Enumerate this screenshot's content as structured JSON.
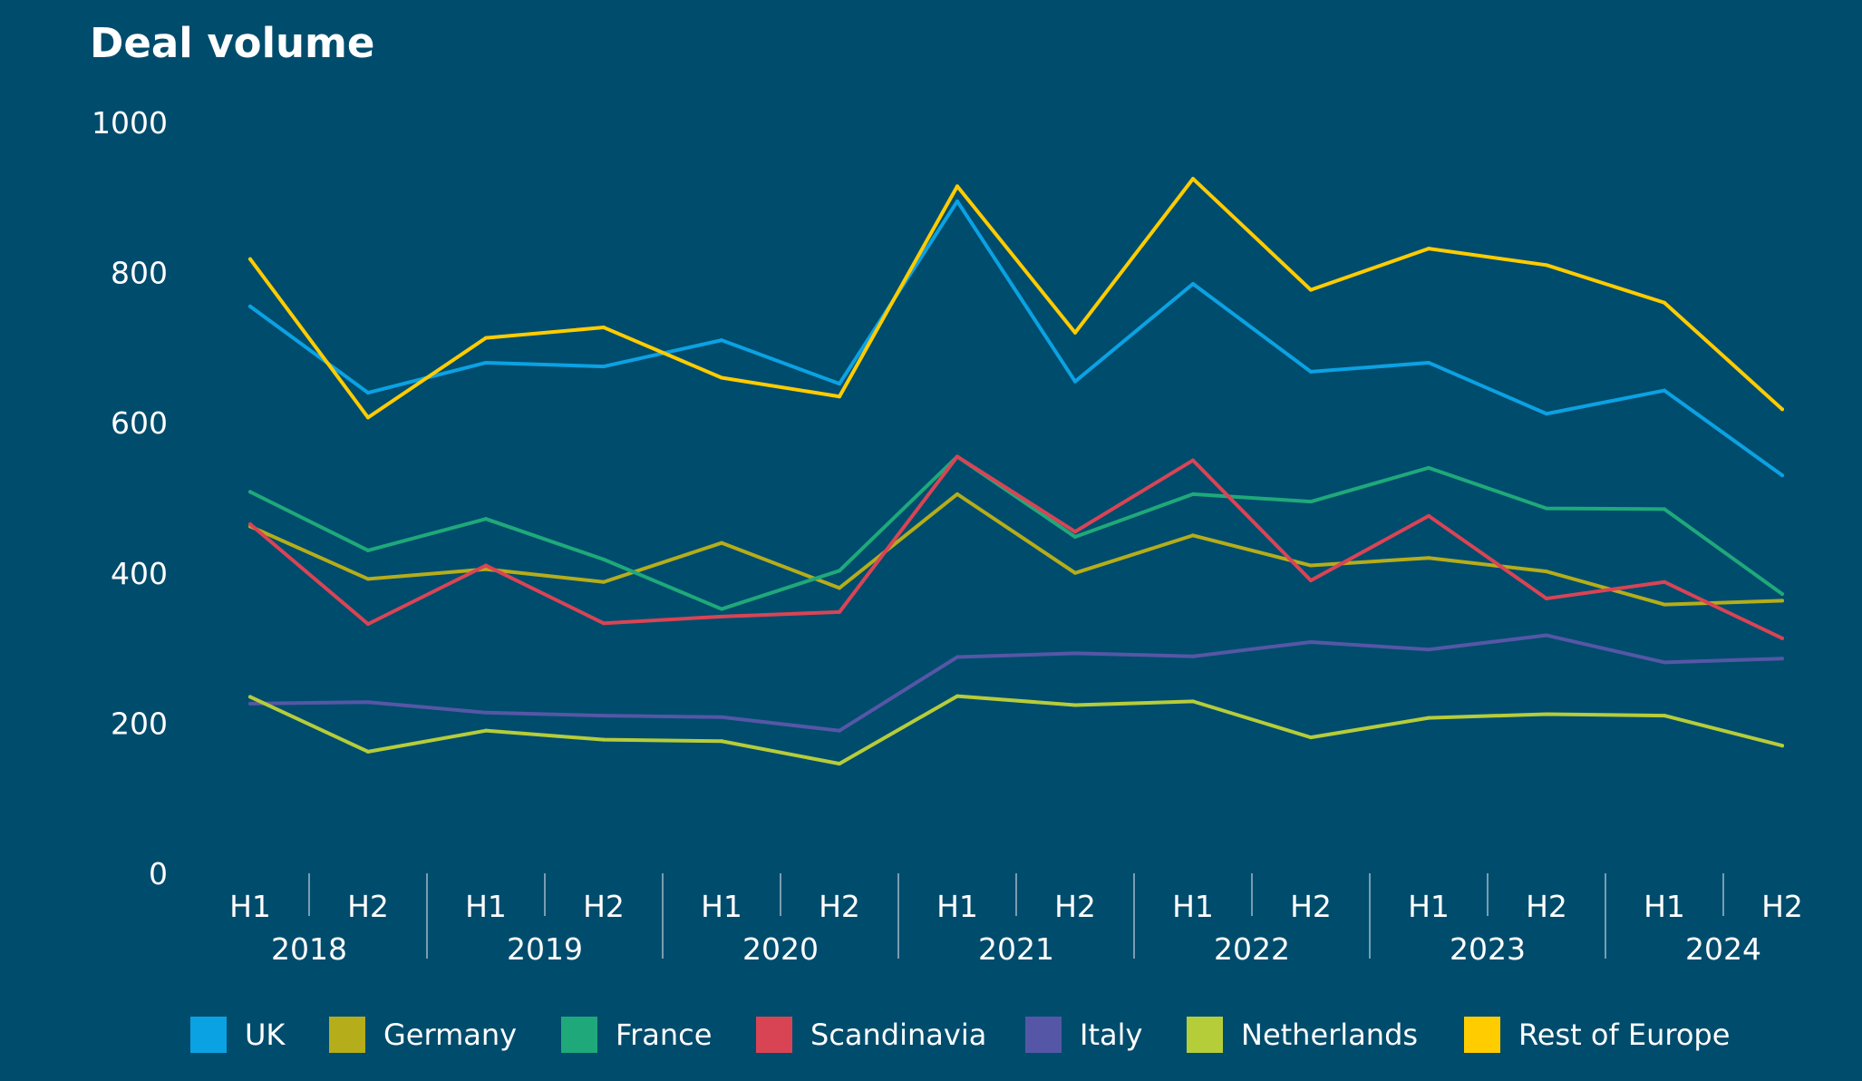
{
  "chart_data": {
    "type": "line",
    "title": "Deal volume",
    "xlabel": "",
    "ylabel": "",
    "ylim": [
      0,
      1000
    ],
    "yticks": [
      0,
      200,
      400,
      600,
      800,
      1000
    ],
    "halves": [
      "H1",
      "H2",
      "H1",
      "H2",
      "H1",
      "H2",
      "H1",
      "H2",
      "H1",
      "H2",
      "H1",
      "H2",
      "H1",
      "H2"
    ],
    "years": [
      "2018",
      "2019",
      "2020",
      "2021",
      "2022",
      "2023",
      "2024"
    ],
    "grid": false,
    "legend_position": "bottom",
    "series": [
      {
        "name": "UK",
        "color": "#0BA2E3",
        "values": [
          755,
          640,
          680,
          675,
          710,
          652,
          895,
          655,
          785,
          668,
          680,
          612,
          643,
          530
        ]
      },
      {
        "name": "Germany",
        "color": "#B5AD1A",
        "values": [
          462,
          392,
          405,
          388,
          440,
          380,
          505,
          400,
          450,
          410,
          420,
          402,
          358,
          363
        ]
      },
      {
        "name": "France",
        "color": "#1FA97A",
        "values": [
          508,
          430,
          472,
          418,
          352,
          403,
          555,
          448,
          505,
          495,
          540,
          486,
          485,
          372
        ]
      },
      {
        "name": "Scandinavia",
        "color": "#D94455",
        "values": [
          465,
          332,
          410,
          333,
          342,
          348,
          555,
          455,
          550,
          390,
          476,
          366,
          388,
          313
        ]
      },
      {
        "name": "Italy",
        "color": "#5557A6",
        "values": [
          226,
          228,
          214,
          210,
          208,
          190,
          288,
          293,
          289,
          308,
          298,
          317,
          281,
          286
        ]
      },
      {
        "name": "Netherlands",
        "color": "#B6CD3A",
        "values": [
          235,
          162,
          190,
          178,
          176,
          146,
          236,
          224,
          229,
          181,
          207,
          212,
          210,
          170
        ]
      },
      {
        "name": "Rest of Europe",
        "color": "#FFCC00",
        "values": [
          818,
          607,
          713,
          727,
          660,
          635,
          915,
          720,
          925,
          777,
          832,
          810,
          760,
          618
        ]
      }
    ]
  }
}
